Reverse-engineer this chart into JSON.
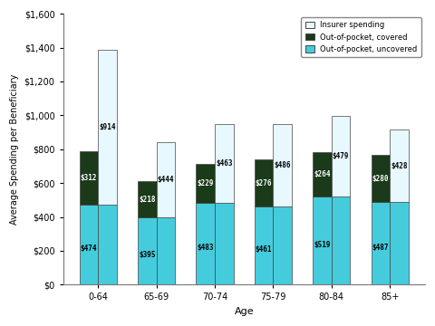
{
  "categories": [
    "0-64",
    "65-69",
    "70-74",
    "75-79",
    "80-84",
    "85+"
  ],
  "bar1_oop_uncov": [
    474,
    395,
    483,
    461,
    519,
    487
  ],
  "bar1_oop_cov": [
    312,
    218,
    229,
    276,
    264,
    280
  ],
  "bar2_oop_uncov": [
    474,
    395,
    483,
    461,
    519,
    487
  ],
  "bar2_insurer": [
    914,
    444,
    463,
    486,
    479,
    428
  ],
  "colors": {
    "insurer": "#e8f8ff",
    "oop_covered": "#1a3a1a",
    "oop_uncovered": "#44ccdd",
    "bar_edge": "#444444"
  },
  "ylabel": "Average Spending per Beneficiary",
  "xlabel": "Age",
  "ylim": [
    0,
    1600
  ],
  "yticks": [
    0,
    200,
    400,
    600,
    800,
    1000,
    1200,
    1400,
    1600
  ],
  "ytick_labels": [
    "$0",
    "$200",
    "$400",
    "$600",
    "$800",
    "$1,000",
    "$1,200",
    "$1,400",
    "$1,600"
  ],
  "legend_labels": [
    "Insurer spending",
    "Out-of-pocket, covered",
    "Out-of-pocket, uncovered"
  ],
  "bar_width": 0.32,
  "bg_color": "#ffffff",
  "label_fontsize": 5.5
}
